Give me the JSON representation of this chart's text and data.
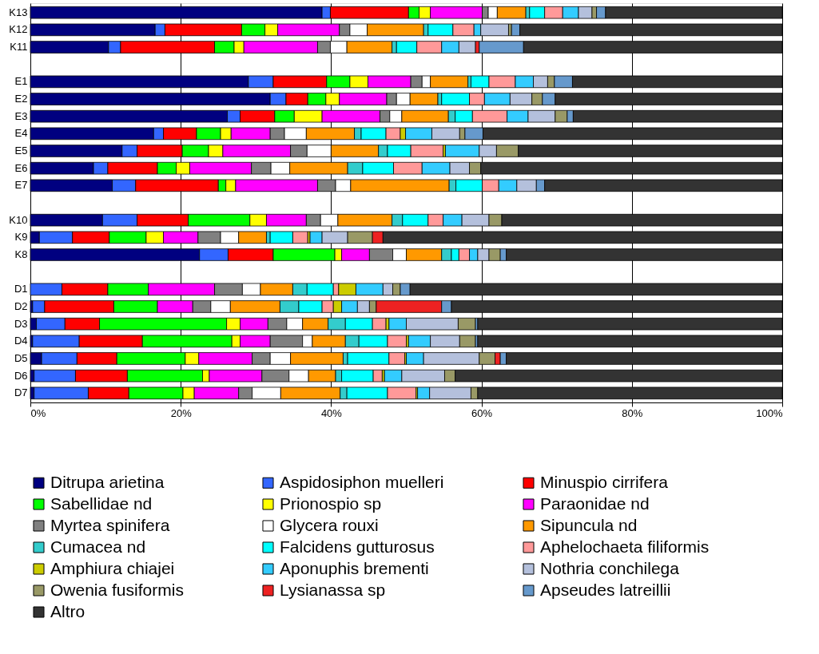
{
  "chart_data": {
    "type": "bar",
    "orientation": "horizontal",
    "stacked": true,
    "categories": [
      "K13",
      "K12",
      "K11",
      null,
      "E1",
      "E2",
      "E3",
      "E4",
      "E5",
      "E6",
      "E7",
      null,
      "K10",
      "K9",
      "K8",
      null,
      "D1",
      "D2",
      "D3",
      "D4",
      "D5",
      "D6",
      "D7"
    ],
    "xlim": [
      0,
      100
    ],
    "xticks": [
      {
        "value": 0,
        "label": "0%"
      },
      {
        "value": 20,
        "label": "20%"
      },
      {
        "value": 40,
        "label": "40%"
      },
      {
        "value": 60,
        "label": "60%"
      },
      {
        "value": 80,
        "label": "80%"
      },
      {
        "value": 100,
        "label": "100%"
      }
    ],
    "grid": "x",
    "legend": "bottom",
    "series": [
      {
        "name": "Ditrupa arietina",
        "color": "#000080",
        "values": [
          38.8,
          16.6,
          10.4,
          null,
          29.0,
          31.9,
          26.2,
          16.4,
          12.2,
          8.4,
          10.9,
          null,
          9.6,
          1.2,
          22.5,
          null,
          null,
          0.3,
          0.8,
          0.3,
          1.5,
          0.5,
          0.5
        ]
      },
      {
        "name": "Aspidosiphon muelleri",
        "color": "#3366ff",
        "values": [
          1.1,
          1.3,
          1.6,
          null,
          3.3,
          2.1,
          1.7,
          1.3,
          2.0,
          1.9,
          3.1,
          null,
          4.6,
          4.4,
          3.8,
          null,
          4.2,
          1.6,
          3.8,
          6.2,
          4.7,
          5.5,
          7.2
        ]
      },
      {
        "name": "Minuspio cirrifera",
        "color": "#ff0000",
        "values": [
          10.4,
          10.2,
          12.5,
          null,
          7.1,
          2.9,
          4.6,
          4.4,
          6.0,
          6.6,
          11.0,
          null,
          6.8,
          4.9,
          6.0,
          null,
          6.1,
          9.2,
          4.6,
          8.4,
          5.3,
          6.9,
          5.4
        ]
      },
      {
        "name": "Sabellidae nd",
        "color": "#00ff00",
        "values": [
          1.4,
          3.1,
          2.6,
          null,
          3.1,
          2.4,
          2.6,
          3.2,
          3.5,
          2.5,
          1.0,
          null,
          8.2,
          4.9,
          8.2,
          null,
          5.4,
          5.8,
          16.9,
          11.9,
          9.1,
          10.0,
          7.2
        ]
      },
      {
        "name": "Prionospio sp",
        "color": "#ffff00",
        "values": [
          1.5,
          1.7,
          1.3,
          null,
          2.4,
          1.8,
          3.7,
          1.4,
          1.9,
          1.8,
          1.3,
          null,
          2.2,
          2.3,
          0.9,
          null,
          null,
          null,
          1.8,
          1.1,
          1.8,
          0.9,
          1.5
        ]
      },
      {
        "name": "Paraonidae nd",
        "color": "#ff00ff",
        "values": [
          6.9,
          8.2,
          9.8,
          null,
          5.7,
          6.3,
          7.7,
          5.2,
          9.0,
          8.2,
          10.9,
          null,
          5.3,
          4.6,
          3.7,
          null,
          8.8,
          4.7,
          3.7,
          4.0,
          7.1,
          7.0,
          5.9
        ]
      },
      {
        "name": "Myrtea spinifera",
        "color": "#808080",
        "values": [
          0.8,
          1.4,
          1.7,
          null,
          1.5,
          1.3,
          1.3,
          1.9,
          2.2,
          2.6,
          2.4,
          null,
          1.9,
          3.0,
          3.1,
          null,
          3.7,
          2.4,
          2.5,
          4.3,
          2.4,
          3.6,
          1.8
        ]
      },
      {
        "name": "Glycera rouxi",
        "color": "#ffffff",
        "values": [
          1.2,
          2.3,
          2.2,
          null,
          1.1,
          1.8,
          1.6,
          2.9,
          3.2,
          2.5,
          2.0,
          null,
          2.3,
          2.4,
          1.8,
          null,
          2.4,
          2.6,
          2.1,
          1.3,
          2.7,
          2.6,
          3.8
        ]
      },
      {
        "name": "Sipuncula nd",
        "color": "#ff9900",
        "values": [
          3.8,
          7.5,
          6.0,
          null,
          5.0,
          3.7,
          6.2,
          6.4,
          6.3,
          7.7,
          13.1,
          null,
          7.2,
          3.7,
          4.7,
          null,
          4.3,
          6.6,
          3.4,
          4.4,
          7.0,
          3.6,
          7.9
        ]
      },
      {
        "name": "Cumacea nd",
        "color": "#33cccc",
        "values": [
          0.5,
          0.6,
          0.6,
          null,
          0.4,
          0.5,
          0.9,
          0.9,
          1.2,
          2.0,
          0.9,
          null,
          1.4,
          0.5,
          1.3,
          null,
          1.9,
          2.5,
          2.3,
          1.8,
          0.6,
          0.8,
          0.9
        ]
      },
      {
        "name": "Falcidens gutturosus",
        "color": "#00ffff",
        "values": [
          2.0,
          3.3,
          2.7,
          null,
          2.4,
          3.7,
          2.3,
          3.3,
          3.1,
          4.1,
          3.5,
          null,
          3.4,
          3.0,
          1.0,
          null,
          3.5,
          3.1,
          3.6,
          3.8,
          5.5,
          4.2,
          5.4
        ]
      },
      {
        "name": "Aphelochaeta filiformis",
        "color": "#ff9999",
        "values": [
          2.4,
          2.8,
          3.3,
          null,
          3.5,
          2.0,
          4.6,
          1.9,
          4.3,
          3.8,
          2.2,
          null,
          2.0,
          2.0,
          1.4,
          null,
          0.7,
          1.5,
          1.8,
          2.5,
          2.1,
          1.2,
          3.8
        ]
      },
      {
        "name": "Amphiura chiajei",
        "color": "#cccc00",
        "values": [
          null,
          null,
          null,
          null,
          null,
          null,
          null,
          0.7,
          0.3,
          null,
          null,
          null,
          null,
          0.3,
          null,
          null,
          2.3,
          1.1,
          0.4,
          0.3,
          0.2,
          0.3,
          0.2
        ]
      },
      {
        "name": "Aponuphis brementi",
        "color": "#33ccff",
        "values": [
          2.1,
          0.9,
          2.3,
          null,
          2.4,
          3.4,
          2.8,
          3.5,
          4.5,
          3.7,
          2.4,
          null,
          2.5,
          1.6,
          1.1,
          null,
          3.6,
          2.1,
          2.3,
          2.9,
          2.3,
          2.3,
          1.6
        ]
      },
      {
        "name": "Nothria conchilega",
        "color": "#b4c0dc",
        "values": [
          1.8,
          3.7,
          2.2,
          null,
          1.9,
          2.9,
          3.6,
          3.7,
          2.3,
          2.6,
          2.6,
          null,
          3.6,
          3.4,
          1.5,
          null,
          1.3,
          1.6,
          6.9,
          3.9,
          7.4,
          5.7,
          5.5
        ]
      },
      {
        "name": "Owenia fusiformis",
        "color": "#999966",
        "values": [
          0.6,
          0.4,
          null,
          null,
          0.9,
          1.4,
          1.6,
          0.7,
          2.9,
          1.5,
          null,
          null,
          1.7,
          3.3,
          1.5,
          null,
          1.0,
          0.9,
          2.3,
          2.1,
          2.1,
          1.4,
          0.9
        ]
      },
      {
        "name": "Lysianassa sp",
        "color": "#ee2222",
        "values": [
          null,
          null,
          0.5,
          null,
          null,
          null,
          null,
          null,
          null,
          null,
          null,
          null,
          null,
          1.4,
          null,
          null,
          null,
          8.7,
          null,
          null,
          0.7,
          null,
          null
        ]
      },
      {
        "name": "Apseudes latreillii",
        "color": "#6699cc",
        "values": [
          1.2,
          1.1,
          5.9,
          null,
          2.4,
          1.7,
          0.8,
          2.4,
          null,
          null,
          1.1,
          null,
          null,
          null,
          0.8,
          null,
          1.3,
          1.3,
          0.3,
          0.3,
          0.8,
          null,
          null
        ]
      },
      {
        "name": "Altro",
        "color": "#333333",
        "values": [
          23.5,
          34.9,
          34.4,
          null,
          27.9,
          30.2,
          27.8,
          39.8,
          35.1,
          40.1,
          31.6,
          null,
          37.3,
          53.1,
          36.7,
          null,
          49.5,
          44.0,
          40.5,
          40.5,
          36.7,
          43.5,
          40.5
        ]
      }
    ]
  }
}
